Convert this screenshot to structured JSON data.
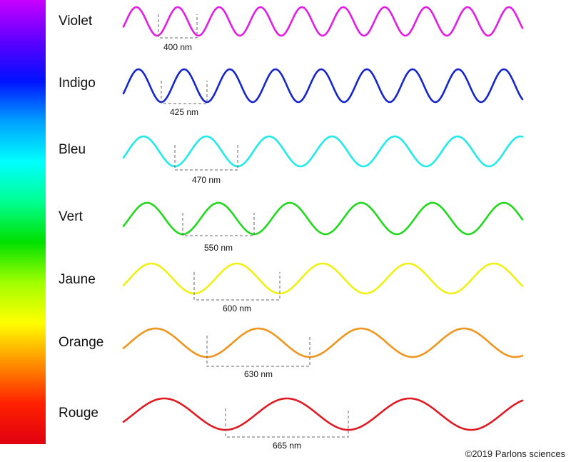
{
  "spectrum_bar": {
    "stops": [
      "#c800ff",
      "#6000ff",
      "#0010ff",
      "#00a0ff",
      "#00ffff",
      "#00ff90",
      "#00e000",
      "#a0ff00",
      "#ffff00",
      "#ff9000",
      "#ff2000",
      "#e00010"
    ]
  },
  "waves": [
    {
      "name": "Violet",
      "wavelength": "400 nm",
      "color": "#e21ee6"
    },
    {
      "name": "Indigo",
      "wavelength": "425 nm",
      "color": "#1525cc"
    },
    {
      "name": "Bleu",
      "wavelength": "470 nm",
      "color": "#22eaea"
    },
    {
      "name": "Vert",
      "wavelength": "550 nm",
      "color": "#22d81e"
    },
    {
      "name": "Jaune",
      "wavelength": "600 nm",
      "color": "#f0f014"
    },
    {
      "name": "Orange",
      "wavelength": "630 nm",
      "color": "#f0961e"
    },
    {
      "name": "Rouge",
      "wavelength": "665 nm",
      "color": "#e01a22"
    }
  ],
  "credit": "©2019 Parlons sciences"
}
